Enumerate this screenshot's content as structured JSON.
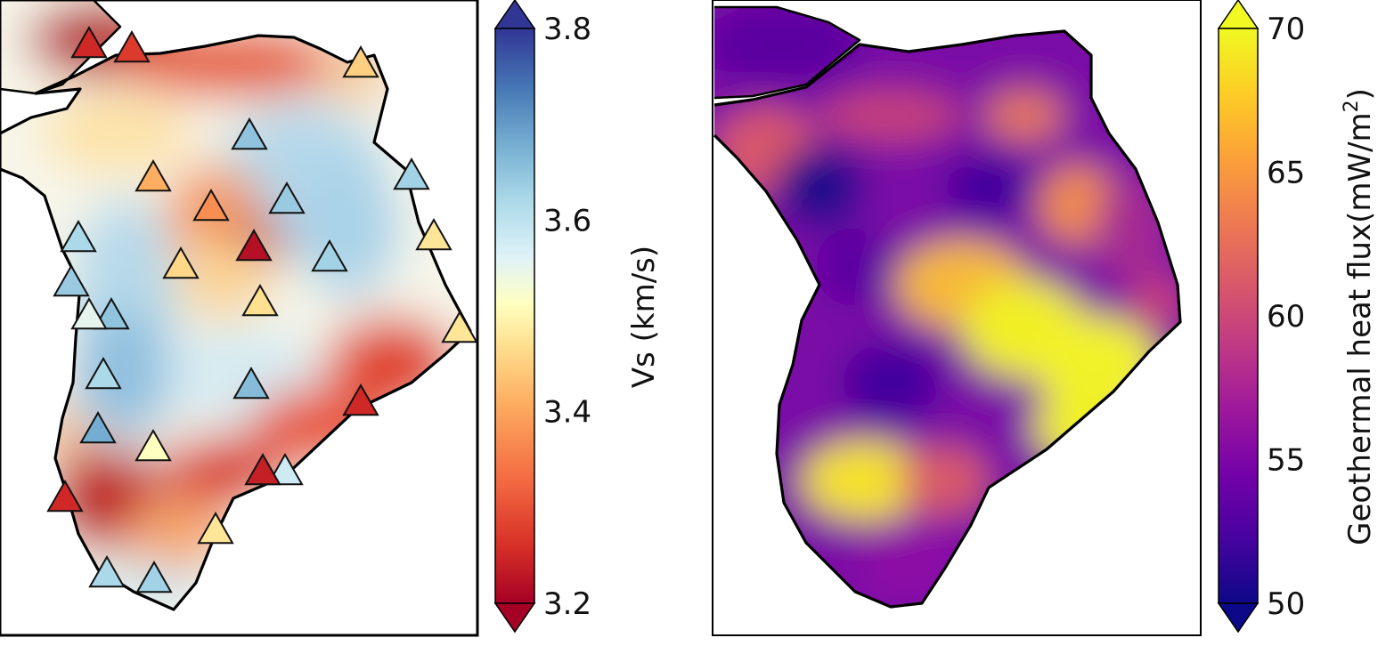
{
  "left_panel": {
    "colorbar": {
      "label": "Vs (km/s)",
      "ticks": [
        "3.8",
        "3.6",
        "3.4",
        "3.2"
      ],
      "tick_values": [
        3.8,
        3.6,
        3.4,
        3.2
      ],
      "range": [
        3.2,
        3.8
      ],
      "colormap": "RdYlBu",
      "colors": [
        "#a50026",
        "#d73027",
        "#f46d43",
        "#fdae61",
        "#fee090",
        "#ffffbf",
        "#e0f3f8",
        "#abd9e9",
        "#74add1",
        "#4575b4",
        "#313695"
      ]
    },
    "stations_vs": [
      3.25,
      3.27,
      3.42,
      3.65,
      3.38,
      3.35,
      3.64,
      3.63,
      3.22,
      3.45,
      3.62,
      3.63,
      3.64,
      3.65,
      3.43,
      3.44,
      3.55,
      3.45,
      3.62,
      3.66,
      3.25,
      3.68,
      3.5,
      3.25,
      3.58,
      3.24,
      3.45,
      3.62,
      3.63
    ]
  },
  "right_panel": {
    "colorbar": {
      "label": "Geothermal heat flux(mW/m",
      "label_superscript": "2",
      "label_close": ")",
      "ticks": [
        "70",
        "65",
        "60",
        "55",
        "50"
      ],
      "tick_values": [
        70,
        65,
        60,
        55,
        50
      ],
      "range": [
        50,
        70
      ],
      "colormap": "plasma",
      "colors": [
        "#0d0887",
        "#46039f",
        "#7201a8",
        "#9c179e",
        "#bd3786",
        "#d8576b",
        "#ed7953",
        "#fb9f3a",
        "#fdca26",
        "#f0f921"
      ]
    }
  }
}
